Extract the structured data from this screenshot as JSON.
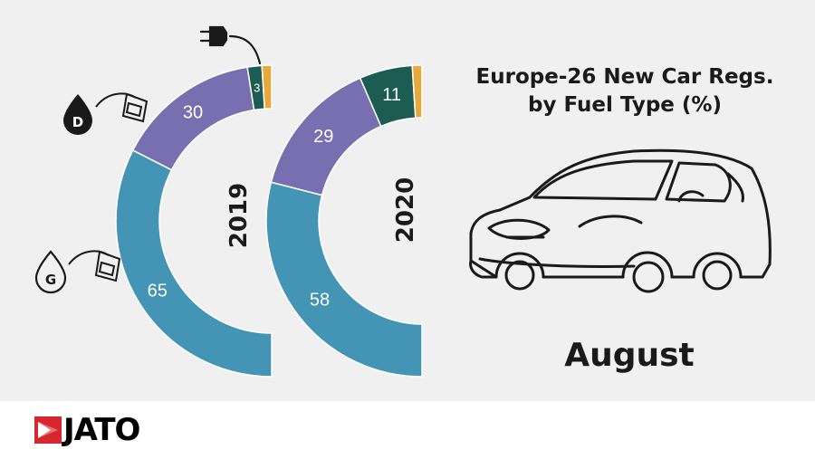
{
  "title_line1": "Europe-26 New Car Regs.",
  "title_line2": "by Fuel Type (%)",
  "month": "August",
  "brand": "JATO",
  "colors": {
    "petrol": "#4494b6",
    "diesel": "#776fb0",
    "electrified": "#1c5c53",
    "other": "#e9a83a",
    "brand_red": "#d8262f"
  },
  "icons": {
    "electric": "plug-icon",
    "diesel": "diesel-pump-icon",
    "petrol": "petrol-pump-icon",
    "car": "car-outline-icon"
  },
  "chart_data": {
    "type": "pie",
    "subtype": "half-donut",
    "series": [
      {
        "name": "2019",
        "values": [
          65,
          30,
          3,
          2
        ],
        "labels": [
          "65",
          "30",
          "3",
          ""
        ]
      },
      {
        "name": "2020",
        "values": [
          58,
          29,
          11,
          2
        ],
        "labels": [
          "58",
          "29",
          "11",
          ""
        ]
      }
    ]
  }
}
